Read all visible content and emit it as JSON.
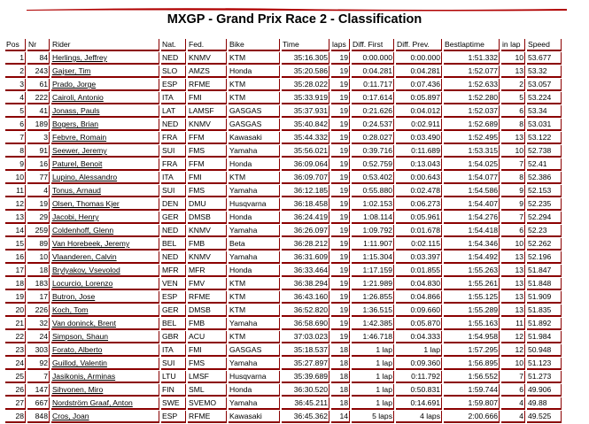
{
  "title": "MXGP - Grand Prix Race 2 - Classification",
  "colors": {
    "accent": "#b00000",
    "border": "#8b0000"
  },
  "columns": [
    "Pos",
    "Nr",
    "Rider",
    "Nat.",
    "Fed.",
    "Bike",
    "Time",
    "laps",
    "Diff. First",
    "Diff. Prev.",
    "Bestlaptime",
    "in lap",
    "Speed"
  ],
  "rows": [
    [
      "1",
      "84",
      "Herlings, Jeffrey",
      "NED",
      "KNMV",
      "KTM",
      "35:16.305",
      "19",
      "0:00.000",
      "0:00.000",
      "1:51.332",
      "10",
      "53.677"
    ],
    [
      "2",
      "243",
      "Gajser, Tim",
      "SLO",
      "AMZS",
      "Honda",
      "35:20.586",
      "19",
      "0:04.281",
      "0:04.281",
      "1:52.077",
      "13",
      "53.32"
    ],
    [
      "3",
      "61",
      "Prado, Jorge",
      "ESP",
      "RFME",
      "KTM",
      "35:28.022",
      "19",
      "0:11.717",
      "0:07.436",
      "1:52.633",
      "2",
      "53.057"
    ],
    [
      "4",
      "222",
      "Cairoli, Antonio",
      "ITA",
      "FMI",
      "KTM",
      "35:33.919",
      "19",
      "0:17.614",
      "0:05.897",
      "1:52.280",
      "5",
      "53.224"
    ],
    [
      "5",
      "41",
      "Jonass, Pauls",
      "LAT",
      "LAMSF",
      "GASGAS",
      "35:37.931",
      "19",
      "0:21.626",
      "0:04.012",
      "1:52.037",
      "6",
      "53.34"
    ],
    [
      "6",
      "189",
      "Bogers, Brian",
      "NED",
      "KNMV",
      "GASGAS",
      "35:40.842",
      "19",
      "0:24.537",
      "0:02.911",
      "1:52.689",
      "8",
      "53.031"
    ],
    [
      "7",
      "3",
      "Febvre, Romain",
      "FRA",
      "FFM",
      "Kawasaki",
      "35:44.332",
      "19",
      "0:28.027",
      "0:03.490",
      "1:52.495",
      "13",
      "53.122"
    ],
    [
      "8",
      "91",
      "Seewer, Jeremy",
      "SUI",
      "FMS",
      "Yamaha",
      "35:56.021",
      "19",
      "0:39.716",
      "0:11.689",
      "1:53.315",
      "10",
      "52.738"
    ],
    [
      "9",
      "16",
      "Paturel, Benoit",
      "FRA",
      "FFM",
      "Honda",
      "36:09.064",
      "19",
      "0:52.759",
      "0:13.043",
      "1:54.025",
      "7",
      "52.41"
    ],
    [
      "10",
      "77",
      "Lupino, Alessandro",
      "ITA",
      "FMI",
      "KTM",
      "36:09.707",
      "19",
      "0:53.402",
      "0:00.643",
      "1:54.077",
      "8",
      "52.386"
    ],
    [
      "11",
      "4",
      "Tonus, Arnaud",
      "SUI",
      "FMS",
      "Yamaha",
      "36:12.185",
      "19",
      "0:55.880",
      "0:02.478",
      "1:54.586",
      "9",
      "52.153"
    ],
    [
      "12",
      "19",
      "Olsen, Thomas Kjer",
      "DEN",
      "DMU",
      "Husqvarna",
      "36:18.458",
      "19",
      "1:02.153",
      "0:06.273",
      "1:54.407",
      "9",
      "52.235"
    ],
    [
      "13",
      "29",
      "Jacobi, Henry",
      "GER",
      "DMSB",
      "Honda",
      "36:24.419",
      "19",
      "1:08.114",
      "0:05.961",
      "1:54.276",
      "7",
      "52.294"
    ],
    [
      "14",
      "259",
      "Coldenhoff, Glenn",
      "NED",
      "KNMV",
      "Yamaha",
      "36:26.097",
      "19",
      "1:09.792",
      "0:01.678",
      "1:54.418",
      "6",
      "52.23"
    ],
    [
      "15",
      "89",
      "Van Horebeek, Jeremy",
      "BEL",
      "FMB",
      "Beta",
      "36:28.212",
      "19",
      "1:11.907",
      "0:02.115",
      "1:54.346",
      "10",
      "52.262"
    ],
    [
      "16",
      "10",
      "Vlaanderen, Calvin",
      "NED",
      "KNMV",
      "Yamaha",
      "36:31.609",
      "19",
      "1:15.304",
      "0:03.397",
      "1:54.492",
      "13",
      "52.196"
    ],
    [
      "17",
      "18",
      "Brylyakov, Vsevolod",
      "MFR",
      "MFR",
      "Honda",
      "36:33.464",
      "19",
      "1:17.159",
      "0:01.855",
      "1:55.263",
      "13",
      "51.847"
    ],
    [
      "18",
      "183",
      "Locurcio, Lorenzo",
      "VEN",
      "FMV",
      "KTM",
      "36:38.294",
      "19",
      "1:21.989",
      "0:04.830",
      "1:55.261",
      "13",
      "51.848"
    ],
    [
      "19",
      "17",
      "Butron, Jose",
      "ESP",
      "RFME",
      "KTM",
      "36:43.160",
      "19",
      "1:26.855",
      "0:04.866",
      "1:55.125",
      "13",
      "51.909"
    ],
    [
      "20",
      "226",
      "Koch, Tom",
      "GER",
      "DMSB",
      "KTM",
      "36:52.820",
      "19",
      "1:36.515",
      "0:09.660",
      "1:55.289",
      "13",
      "51.835"
    ],
    [
      "21",
      "32",
      "Van doninck, Brent",
      "BEL",
      "FMB",
      "Yamaha",
      "36:58.690",
      "19",
      "1:42.385",
      "0:05.870",
      "1:55.163",
      "11",
      "51.892"
    ],
    [
      "22",
      "24",
      "Simpson, Shaun",
      "GBR",
      "ACU",
      "KTM",
      "37:03.023",
      "19",
      "1:46.718",
      "0:04.333",
      "1:54.958",
      "12",
      "51.984"
    ],
    [
      "23",
      "303",
      "Forato, Alberto",
      "ITA",
      "FMI",
      "GASGAS",
      "35:18.537",
      "18",
      "1 lap",
      "1 lap",
      "1:57.295",
      "12",
      "50.948"
    ],
    [
      "24",
      "92",
      "Guillod, Valentin",
      "SUI",
      "FMS",
      "Yamaha",
      "35:27.897",
      "18",
      "1 lap",
      "0:09.360",
      "1:56.895",
      "10",
      "51.123"
    ],
    [
      "25",
      "7",
      "Jasikonis, Arminas",
      "LTU",
      "LMSF",
      "Husqvarna",
      "35:39.689",
      "18",
      "1 lap",
      "0:11.792",
      "1:56.552",
      "7",
      "51.273"
    ],
    [
      "26",
      "147",
      "Sihvonen, Miro",
      "FIN",
      "SML",
      "Honda",
      "36:30.520",
      "18",
      "1 lap",
      "0:50.831",
      "1:59.744",
      "6",
      "49.906"
    ],
    [
      "27",
      "667",
      "Nordström Graaf, Anton",
      "SWE",
      "SVEMO",
      "Yamaha",
      "36:45.211",
      "18",
      "1 lap",
      "0:14.691",
      "1:59.807",
      "4",
      "49.88"
    ],
    [
      "28",
      "848",
      "Cros, Joan",
      "ESP",
      "RFME",
      "Kawasaki",
      "36:45.362",
      "14",
      "5 laps",
      "4 laps",
      "2:00.666",
      "4",
      "49.525"
    ]
  ]
}
